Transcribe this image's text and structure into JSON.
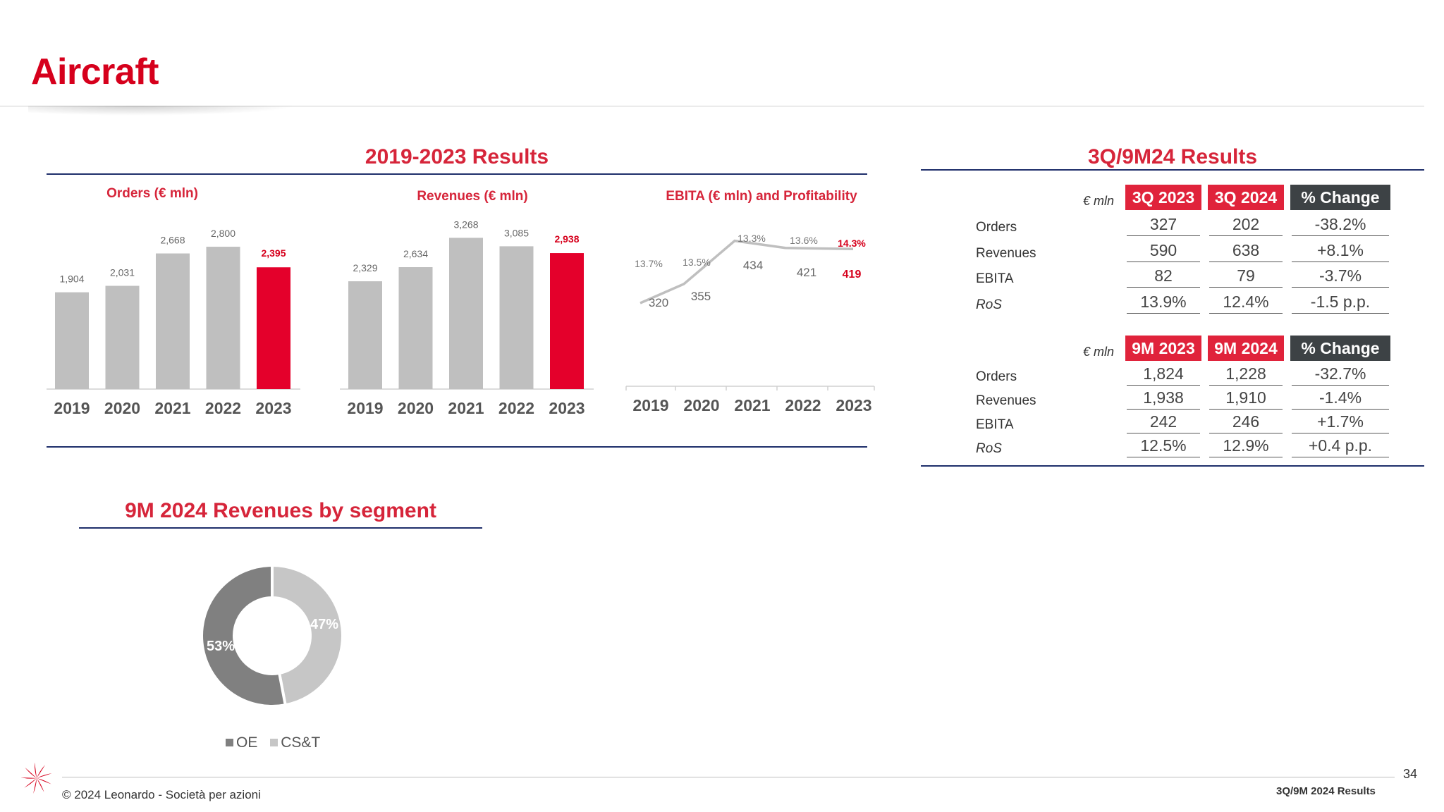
{
  "page": {
    "title": "Aircraft",
    "page_number": "34",
    "footer_copyright": "© 2024 Leonardo - Società per azioni",
    "footer_label": "3Q/9M 2024 Results"
  },
  "results_2019_2023": {
    "title": "2019-2023 Results"
  },
  "results_3q9m": {
    "title": "3Q/9M24 Results",
    "unit": "€ mln",
    "q_table": {
      "headers": [
        "3Q 2023",
        "3Q 2024",
        "% Change"
      ],
      "rows": [
        {
          "label": "Orders",
          "values": [
            "327",
            "202",
            "-38.2%"
          ]
        },
        {
          "label": "Revenues",
          "values": [
            "590",
            "638",
            "+8.1%"
          ]
        },
        {
          "label": "EBITA",
          "values": [
            "82",
            "79",
            "-3.7%"
          ]
        },
        {
          "label": "RoS",
          "values": [
            "13.9%",
            "12.4%",
            "-1.5 p.p."
          ]
        }
      ]
    },
    "m_table": {
      "headers": [
        "9M 2023",
        "9M 2024",
        "% Change"
      ],
      "rows": [
        {
          "label": "Orders",
          "values": [
            "1,824",
            "1,228",
            "-32.7%"
          ]
        },
        {
          "label": "Revenues",
          "values": [
            "1,938",
            "1,910",
            "-1.4%"
          ]
        },
        {
          "label": "EBITA",
          "values": [
            "242",
            "246",
            "+1.7%"
          ]
        },
        {
          "label": "RoS",
          "values": [
            "12.5%",
            "12.9%",
            "+0.4 p.p."
          ]
        }
      ]
    }
  },
  "segment": {
    "title": "9M 2024 Revenues by segment"
  },
  "colors": {
    "accent": "#d6001c",
    "highlight_bar": "#e4002b",
    "bar_grey": "#bfbfbf",
    "navy": "#1f2f6b",
    "header_dark": "#3d4245",
    "oe": "#808080",
    "cst": "#c6c6c6"
  },
  "chart_data": [
    {
      "type": "bar",
      "title": "Orders (€ mln)",
      "categories": [
        "2019",
        "2020",
        "2021",
        "2022",
        "2023"
      ],
      "values": [
        1904,
        2031,
        2668,
        2800,
        2395
      ],
      "labels": [
        "1,904",
        "2,031",
        "2,668",
        "2,800",
        "2,395"
      ],
      "highlight_index": 4
    },
    {
      "type": "bar",
      "title": "Revenues (€ mln)",
      "categories": [
        "2019",
        "2020",
        "2021",
        "2022",
        "2023"
      ],
      "values": [
        2329,
        2634,
        3268,
        3085,
        2938
      ],
      "labels": [
        "2,329",
        "2,634",
        "3,268",
        "3,085",
        "2,938"
      ],
      "highlight_index": 4
    },
    {
      "type": "line",
      "title": "EBITA (€ mln) and Profitability",
      "categories": [
        "2019",
        "2020",
        "2021",
        "2022",
        "2023"
      ],
      "ebita": [
        320,
        355,
        434,
        421,
        419
      ],
      "ebita_labels": [
        "320",
        "355",
        "434",
        "421",
        "419"
      ],
      "ros": [
        13.7,
        13.5,
        13.3,
        13.6,
        14.3
      ],
      "ros_labels": [
        "13.7%",
        "13.5%",
        "13.3%",
        "13.6%",
        "14.3%"
      ],
      "highlight_index": 4
    },
    {
      "type": "pie",
      "title": "9M 2024 Revenues by segment",
      "series": [
        {
          "name": "OE",
          "value": 53,
          "label": "53%"
        },
        {
          "name": "CS&T",
          "value": 47,
          "label": "47%"
        }
      ]
    }
  ]
}
